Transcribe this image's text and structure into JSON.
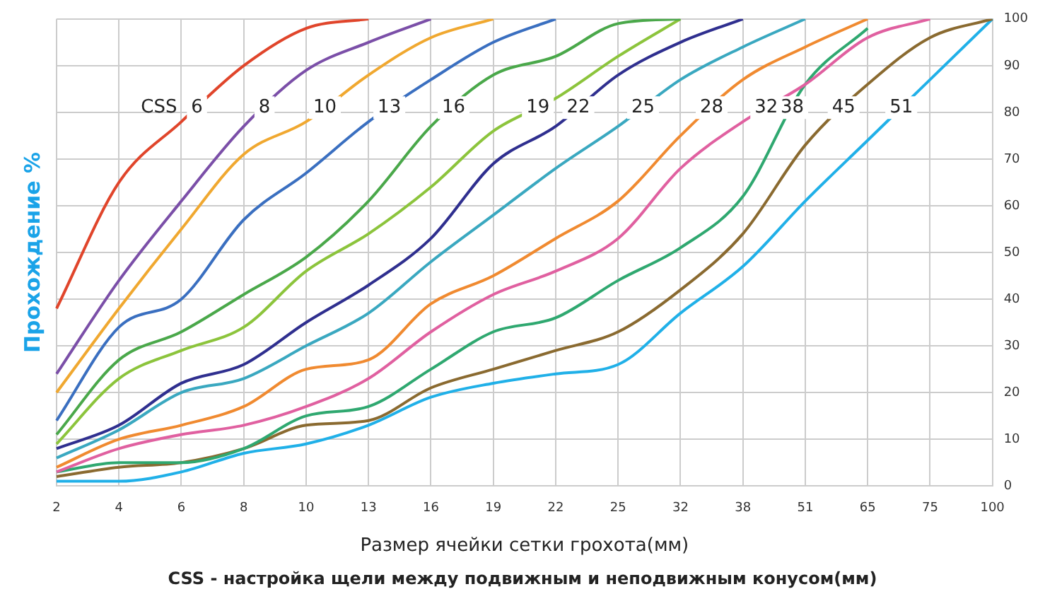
{
  "chart_data": {
    "type": "line",
    "xlabel": "Размер ячейки сетки грохота(мм)",
    "ylabel": "Прохождение %",
    "annotations": [
      "CSS",
      "CSS - настройка щели между подвижным и неподвижным конусом(мм)"
    ],
    "categories": [
      "2",
      "4",
      "6",
      "8",
      "10",
      "13",
      "16",
      "19",
      "22",
      "25",
      "32",
      "38",
      "51",
      "65",
      "75",
      "100"
    ],
    "ylim": [
      0,
      100
    ],
    "yticks": [
      0,
      10,
      20,
      30,
      40,
      50,
      60,
      70,
      80,
      90,
      100
    ],
    "grid": true,
    "legend": false,
    "marker": "none",
    "line_style": "solid",
    "series": [
      {
        "name": "6",
        "color": "#e0452b",
        "values": [
          38,
          65,
          78,
          90,
          98,
          100,
          null,
          null,
          null,
          null,
          null,
          null,
          null,
          null,
          null,
          null
        ]
      },
      {
        "name": "8",
        "color": "#7b4fa8",
        "values": [
          24,
          44,
          61,
          77,
          89,
          95,
          100,
          null,
          null,
          null,
          null,
          null,
          null,
          null,
          null,
          null
        ]
      },
      {
        "name": "10",
        "color": "#f0a830",
        "values": [
          20,
          38,
          55,
          71,
          78,
          88,
          96,
          100,
          null,
          null,
          null,
          null,
          null,
          null,
          null,
          null
        ]
      },
      {
        "name": "13",
        "color": "#3a6fc0",
        "values": [
          14,
          34,
          40,
          57,
          67,
          78,
          87,
          95,
          100,
          null,
          null,
          null,
          null,
          null,
          null,
          null
        ]
      },
      {
        "name": "16",
        "color": "#4aa84a",
        "values": [
          11,
          27,
          33,
          41,
          49,
          61,
          77,
          88,
          92,
          99,
          100,
          null,
          null,
          null,
          null,
          null
        ]
      },
      {
        "name": "19",
        "color": "#8cc43c",
        "values": [
          9,
          23,
          29,
          34,
          46,
          54,
          64,
          76,
          83,
          92,
          100,
          null,
          null,
          null,
          null,
          null
        ]
      },
      {
        "name": "22",
        "color": "#2f2f8f",
        "values": [
          8,
          13,
          22,
          26,
          35,
          43,
          53,
          69,
          77,
          88,
          95,
          100,
          null,
          null,
          null,
          null
        ]
      },
      {
        "name": "25",
        "color": "#3aa8c0",
        "values": [
          6,
          12,
          20,
          23,
          30,
          37,
          48,
          58,
          68,
          77,
          87,
          94,
          100,
          null,
          null,
          null
        ]
      },
      {
        "name": "28",
        "color": "#f08a30",
        "values": [
          4,
          10,
          13,
          17,
          25,
          27,
          39,
          45,
          53,
          61,
          75,
          87,
          94,
          100,
          null,
          null
        ]
      },
      {
        "name": "32",
        "color": "#e060a0",
        "values": [
          3,
          8,
          11,
          13,
          17,
          23,
          33,
          41,
          46,
          53,
          68,
          78,
          86,
          96,
          100,
          null
        ]
      },
      {
        "name": "38",
        "color": "#2fa870",
        "values": [
          3,
          5,
          5,
          8,
          15,
          17,
          25,
          33,
          36,
          44,
          51,
          62,
          86,
          98,
          null,
          null
        ]
      },
      {
        "name": "45",
        "color": "#8a6a30",
        "values": [
          2,
          4,
          5,
          8,
          13,
          14,
          21,
          25,
          29,
          33,
          42,
          54,
          73,
          86,
          96,
          100
        ]
      },
      {
        "name": "51",
        "color": "#20b0e8",
        "values": [
          1,
          1,
          3,
          7,
          9,
          13,
          19,
          22,
          24,
          26,
          37,
          47,
          61,
          74,
          87,
          100
        ]
      }
    ]
  }
}
